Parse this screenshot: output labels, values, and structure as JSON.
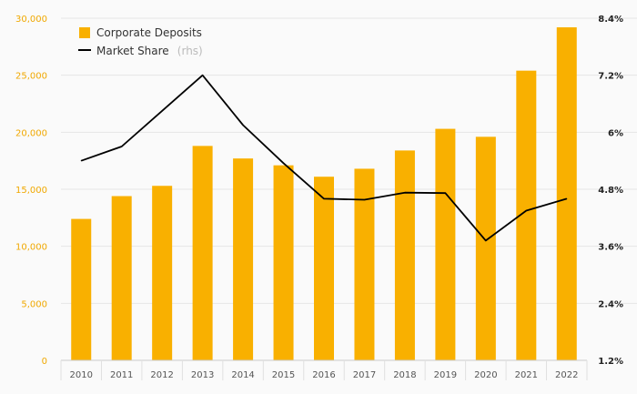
{
  "chart_data": {
    "type": "bar",
    "categories": [
      "2010",
      "2011",
      "2012",
      "2013",
      "2014",
      "2015",
      "2016",
      "2017",
      "2018",
      "2019",
      "2020",
      "2021",
      "2022"
    ],
    "series": [
      {
        "name": "Corporate Deposits",
        "type": "bar",
        "axis": "left",
        "color": "#f9b000",
        "values": [
          12400,
          14400,
          15300,
          18800,
          17700,
          17100,
          16100,
          16800,
          18400,
          20300,
          19600,
          25400,
          29200
        ]
      },
      {
        "name": "Market Share",
        "suffix": "(rhs)",
        "type": "line",
        "axis": "right",
        "color": "#000000",
        "values": [
          5.4,
          5.7,
          6.45,
          7.2,
          6.15,
          5.35,
          4.6,
          4.58,
          4.73,
          4.72,
          3.72,
          4.35,
          4.6
        ]
      }
    ],
    "y_left": {
      "ylim": [
        0,
        30000
      ],
      "ticks": [
        0,
        5000,
        10000,
        15000,
        20000,
        25000,
        30000
      ],
      "tick_labels": [
        "0",
        "5,000",
        "10,000",
        "15,000",
        "20,000",
        "25,000",
        "30,000"
      ],
      "color": "#f0a800"
    },
    "y_right": {
      "ylim": [
        1.2,
        8.4
      ],
      "ticks": [
        1.2,
        2.4,
        3.6,
        4.8,
        6.0,
        7.2,
        8.4
      ],
      "tick_labels": [
        "1.2%",
        "2.4%",
        "3.6%",
        "4.8%",
        "6%",
        "7.2%",
        "8.4%"
      ],
      "color": "#222222"
    },
    "grid": true,
    "legend": "top-left",
    "title": "",
    "xlabel": "",
    "ylabel": ""
  }
}
